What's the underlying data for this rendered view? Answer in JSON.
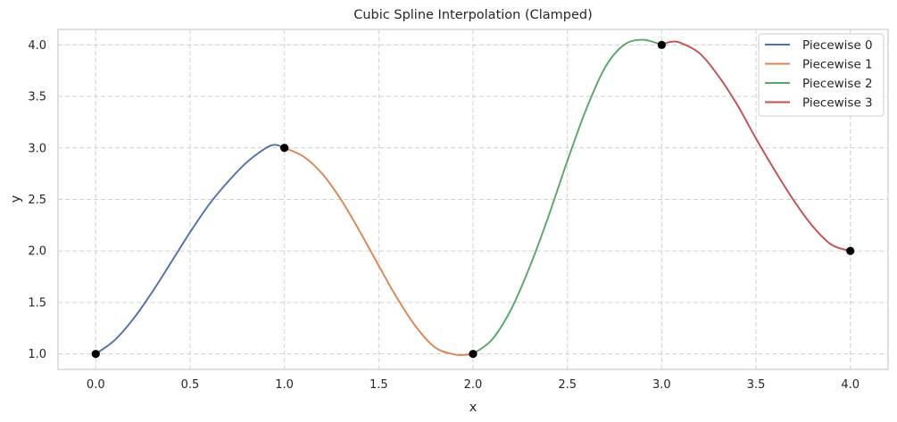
{
  "chart_data": {
    "type": "line",
    "title": "Cubic Spline Interpolation (Clamped)",
    "xlabel": "x",
    "ylabel": "y",
    "xlim": [
      -0.2,
      4.2
    ],
    "ylim": [
      0.85,
      4.15
    ],
    "xticks": [
      0.0,
      0.5,
      1.0,
      1.5,
      2.0,
      2.5,
      3.0,
      3.5,
      4.0
    ],
    "xtick_labels": [
      "0.0",
      "0.5",
      "1.0",
      "1.5",
      "2.0",
      "2.5",
      "3.0",
      "3.5",
      "4.0"
    ],
    "yticks": [
      1.0,
      1.5,
      2.0,
      2.5,
      3.0,
      3.5,
      4.0
    ],
    "ytick_labels": [
      "1.0",
      "1.5",
      "2.0",
      "2.5",
      "3.0",
      "3.5",
      "4.0"
    ],
    "grid": true,
    "legend_position": "top-right",
    "knots": {
      "x": [
        0,
        1,
        2,
        3,
        4
      ],
      "y": [
        1,
        3,
        1,
        4,
        2
      ],
      "color": "#000000"
    },
    "series": [
      {
        "name": "Piecewise 0",
        "color": "#4c72b0",
        "x": [
          0.0,
          0.1,
          0.2,
          0.3,
          0.4,
          0.5,
          0.6,
          0.7,
          0.8,
          0.9,
          0.95,
          1.0
        ],
        "y": [
          1.0,
          1.133,
          1.342,
          1.603,
          1.891,
          2.181,
          2.449,
          2.67,
          2.859,
          2.996,
          3.03,
          3.0
        ]
      },
      {
        "name": "Piecewise 1",
        "color": "#dd8452",
        "x": [
          1.0,
          1.1,
          1.2,
          1.3,
          1.4,
          1.5,
          1.6,
          1.7,
          1.8,
          1.9,
          1.95,
          2.0
        ],
        "y": [
          3.0,
          2.918,
          2.75,
          2.498,
          2.188,
          1.857,
          1.534,
          1.257,
          1.061,
          0.995,
          0.99,
          1.0
        ]
      },
      {
        "name": "Piecewise 2",
        "color": "#55a868",
        "x": [
          2.0,
          2.1,
          2.2,
          2.3,
          2.4,
          2.5,
          2.6,
          2.7,
          2.8,
          2.9,
          3.0
        ],
        "y": [
          1.0,
          1.138,
          1.426,
          1.843,
          2.336,
          2.874,
          3.376,
          3.781,
          4.0,
          4.05,
          4.0
        ]
      },
      {
        "name": "Piecewise 3",
        "color": "#c44e52",
        "x": [
          3.0,
          3.05,
          3.1,
          3.2,
          3.3,
          3.4,
          3.5,
          3.6,
          3.7,
          3.8,
          3.9,
          4.0
        ],
        "y": [
          4.0,
          4.03,
          4.02,
          3.92,
          3.7,
          3.42,
          3.09,
          2.78,
          2.49,
          2.24,
          2.06,
          2.0
        ]
      }
    ]
  }
}
